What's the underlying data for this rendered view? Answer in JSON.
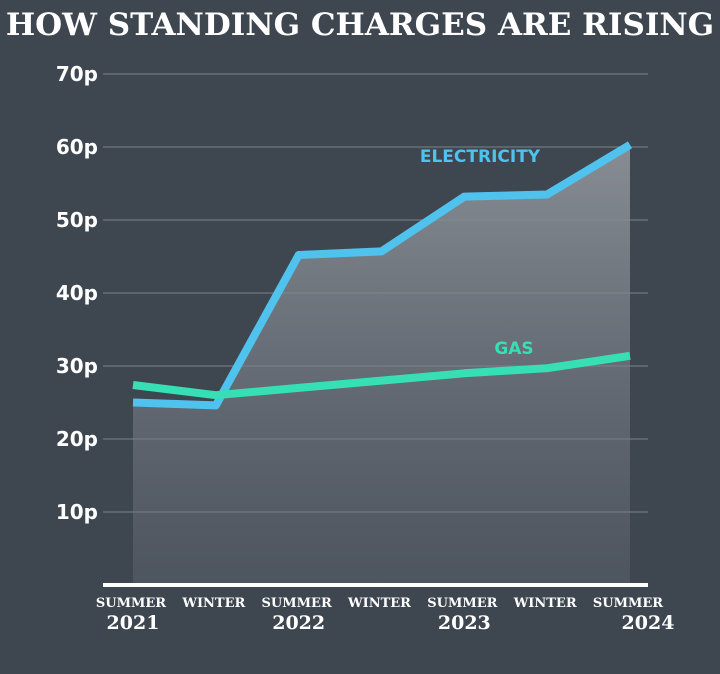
{
  "chart_data": {
    "type": "line",
    "title": "HOW STANDING CHARGES ARE RISING",
    "xlabel": "",
    "ylabel": "",
    "ylim": [
      0,
      70
    ],
    "y_ticks": [
      "10p",
      "20p",
      "30p",
      "40p",
      "50p",
      "60p",
      "70p"
    ],
    "grid": true,
    "categories": [
      "SUMMER",
      "WINTER",
      "SUMMER",
      "WINTER",
      "SUMMER",
      "WINTER",
      "SUMMER"
    ],
    "years": [
      {
        "label": "2021",
        "index": 0
      },
      {
        "label": "2022",
        "index": 2
      },
      {
        "label": "2023",
        "index": 4
      },
      {
        "label": "2024",
        "index": 6
      }
    ],
    "series": [
      {
        "name": "ELECTRICITY",
        "color": "#4fc3ee",
        "values": [
          25.0,
          24.6,
          45.2,
          45.7,
          53.2,
          53.5,
          60.3
        ],
        "filled": true
      },
      {
        "name": "GAS",
        "color": "#36e0b4",
        "values": [
          27.4,
          26.0,
          27.0,
          28.0,
          29.0,
          29.7,
          31.4
        ],
        "filled": false
      }
    ]
  }
}
